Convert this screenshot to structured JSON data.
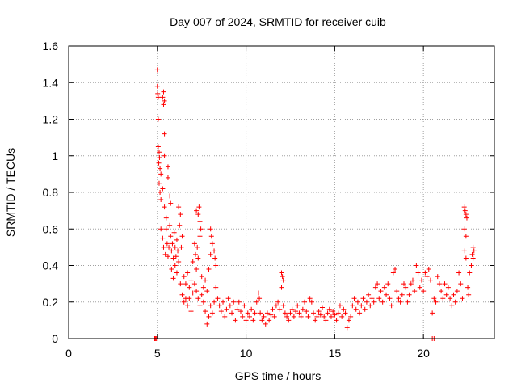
{
  "chart_data": {
    "type": "scatter",
    "title": "Day 007 of 2024, SRMTID for receiver cuib",
    "xlabel": "GPS time / hours",
    "ylabel": "SRMTID / TECUs",
    "xlim": [
      0,
      24
    ],
    "ylim": [
      0,
      1.6
    ],
    "xticks": [
      0,
      5,
      10,
      15,
      20
    ],
    "xtick_labels": [
      "0",
      "5",
      "10",
      "15",
      "20"
    ],
    "yticks": [
      0,
      0.2,
      0.4,
      0.6,
      0.8,
      1.0,
      1.2,
      1.4,
      1.6
    ],
    "ytick_labels": [
      "0",
      "0.2",
      "0.4",
      "0.6",
      "0.8",
      "1",
      "1.2",
      "1.4",
      "1.6"
    ],
    "grid": true,
    "marker": "+",
    "series": [
      {
        "name": "SRMTID",
        "color": "#ff0000",
        "points": [
          [
            4.85,
            0.0
          ],
          [
            4.9,
            0.0
          ],
          [
            4.95,
            0.0
          ],
          [
            20.5,
            0.0
          ],
          [
            20.6,
            0.0
          ],
          [
            5.0,
            1.47
          ],
          [
            5.02,
            1.34
          ],
          [
            5.05,
            1.32
          ],
          [
            5.0,
            1.38
          ],
          [
            5.05,
            1.2
          ],
          [
            5.35,
            1.35
          ],
          [
            5.4,
            1.3
          ],
          [
            5.3,
            1.32
          ],
          [
            5.35,
            1.28
          ],
          [
            5.4,
            1.12
          ],
          [
            5.05,
            1.05
          ],
          [
            5.1,
            1.02
          ],
          [
            5.12,
            0.99
          ],
          [
            5.08,
            0.96
          ],
          [
            5.15,
            0.93
          ],
          [
            5.2,
            0.9
          ],
          [
            5.1,
            0.85
          ],
          [
            5.15,
            0.8
          ],
          [
            5.2,
            0.76
          ],
          [
            5.4,
            1.0
          ],
          [
            5.6,
            0.94
          ],
          [
            5.6,
            0.88
          ],
          [
            5.3,
            0.82
          ],
          [
            5.4,
            0.72
          ],
          [
            5.5,
            0.66
          ],
          [
            5.7,
            0.78
          ],
          [
            5.75,
            0.74
          ],
          [
            5.2,
            0.6
          ],
          [
            5.3,
            0.55
          ],
          [
            5.35,
            0.5
          ],
          [
            5.45,
            0.46
          ],
          [
            5.5,
            0.6
          ],
          [
            5.55,
            0.52
          ],
          [
            5.6,
            0.45
          ],
          [
            5.65,
            0.5
          ],
          [
            5.7,
            0.62
          ],
          [
            5.75,
            0.56
          ],
          [
            5.8,
            0.48
          ],
          [
            5.85,
            0.52
          ],
          [
            5.9,
            0.44
          ],
          [
            5.95,
            0.58
          ],
          [
            6.0,
            0.5
          ],
          [
            6.05,
            0.45
          ],
          [
            6.1,
            0.54
          ],
          [
            6.15,
            0.48
          ],
          [
            5.8,
            0.38
          ],
          [
            5.9,
            0.33
          ],
          [
            6.0,
            0.4
          ],
          [
            6.1,
            0.36
          ],
          [
            6.2,
            0.42
          ],
          [
            6.3,
            0.3
          ],
          [
            6.2,
            0.72
          ],
          [
            6.3,
            0.68
          ],
          [
            6.25,
            0.62
          ],
          [
            6.4,
            0.56
          ],
          [
            6.35,
            0.5
          ],
          [
            6.5,
            0.34
          ],
          [
            6.6,
            0.3
          ],
          [
            6.7,
            0.36
          ],
          [
            6.8,
            0.28
          ],
          [
            6.9,
            0.32
          ],
          [
            7.0,
            0.25
          ],
          [
            6.4,
            0.24
          ],
          [
            6.5,
            0.2
          ],
          [
            6.6,
            0.22
          ],
          [
            6.7,
            0.18
          ],
          [
            6.8,
            0.22
          ],
          [
            6.9,
            0.15
          ],
          [
            7.0,
            0.42
          ],
          [
            7.1,
            0.52
          ],
          [
            7.15,
            0.46
          ],
          [
            7.2,
            0.38
          ],
          [
            7.25,
            0.5
          ],
          [
            7.3,
            0.44
          ],
          [
            7.2,
            0.7
          ],
          [
            7.3,
            0.68
          ],
          [
            7.35,
            0.72
          ],
          [
            7.4,
            0.64
          ],
          [
            7.45,
            0.6
          ],
          [
            7.4,
            0.56
          ],
          [
            7.1,
            0.3
          ],
          [
            7.2,
            0.26
          ],
          [
            7.3,
            0.22
          ],
          [
            7.4,
            0.18
          ],
          [
            7.5,
            0.24
          ],
          [
            7.6,
            0.2
          ],
          [
            7.5,
            0.34
          ],
          [
            7.6,
            0.28
          ],
          [
            7.7,
            0.32
          ],
          [
            7.8,
            0.26
          ],
          [
            7.9,
            0.38
          ],
          [
            8.0,
            0.46
          ],
          [
            8.0,
            0.6
          ],
          [
            8.05,
            0.56
          ],
          [
            8.1,
            0.52
          ],
          [
            8.2,
            0.48
          ],
          [
            8.25,
            0.44
          ],
          [
            8.3,
            0.4
          ],
          [
            7.7,
            0.15
          ],
          [
            7.8,
            0.08
          ],
          [
            7.9,
            0.12
          ],
          [
            8.0,
            0.18
          ],
          [
            8.1,
            0.14
          ],
          [
            8.2,
            0.2
          ],
          [
            8.3,
            0.28
          ],
          [
            8.4,
            0.22
          ],
          [
            8.5,
            0.18
          ],
          [
            8.6,
            0.15
          ],
          [
            8.7,
            0.2
          ],
          [
            8.8,
            0.12
          ],
          [
            8.9,
            0.16
          ],
          [
            9.0,
            0.22
          ],
          [
            9.1,
            0.18
          ],
          [
            9.2,
            0.14
          ],
          [
            9.3,
            0.2
          ],
          [
            9.4,
            0.1
          ],
          [
            9.5,
            0.16
          ],
          [
            9.6,
            0.2
          ],
          [
            9.7,
            0.15
          ],
          [
            9.8,
            0.12
          ],
          [
            9.9,
            0.18
          ],
          [
            10.0,
            0.1
          ],
          [
            10.1,
            0.14
          ],
          [
            10.2,
            0.12
          ],
          [
            10.3,
            0.16
          ],
          [
            10.4,
            0.1
          ],
          [
            10.5,
            0.14
          ],
          [
            10.6,
            0.2
          ],
          [
            10.7,
            0.25
          ],
          [
            10.75,
            0.22
          ],
          [
            10.8,
            0.14
          ],
          [
            10.9,
            0.1
          ],
          [
            11.0,
            0.12
          ],
          [
            11.1,
            0.08
          ],
          [
            11.2,
            0.14
          ],
          [
            11.3,
            0.1
          ],
          [
            11.4,
            0.13
          ],
          [
            11.5,
            0.16
          ],
          [
            11.6,
            0.12
          ],
          [
            11.7,
            0.18
          ],
          [
            11.8,
            0.2
          ],
          [
            11.9,
            0.16
          ],
          [
            12.0,
            0.36
          ],
          [
            12.05,
            0.34
          ],
          [
            12.1,
            0.32
          ],
          [
            12.0,
            0.28
          ],
          [
            12.1,
            0.18
          ],
          [
            12.2,
            0.14
          ],
          [
            12.3,
            0.12
          ],
          [
            12.4,
            0.1
          ],
          [
            12.5,
            0.14
          ],
          [
            12.6,
            0.16
          ],
          [
            12.7,
            0.12
          ],
          [
            12.8,
            0.15
          ],
          [
            12.9,
            0.18
          ],
          [
            13.0,
            0.14
          ],
          [
            13.1,
            0.12
          ],
          [
            13.2,
            0.16
          ],
          [
            13.3,
            0.2
          ],
          [
            13.4,
            0.15
          ],
          [
            13.5,
            0.12
          ],
          [
            13.6,
            0.22
          ],
          [
            13.7,
            0.2
          ],
          [
            13.8,
            0.14
          ],
          [
            13.9,
            0.1
          ],
          [
            14.0,
            0.12
          ],
          [
            14.1,
            0.15
          ],
          [
            14.2,
            0.13
          ],
          [
            14.3,
            0.17
          ],
          [
            14.4,
            0.12
          ],
          [
            14.5,
            0.1
          ],
          [
            14.6,
            0.14
          ],
          [
            14.7,
            0.16
          ],
          [
            14.8,
            0.12
          ],
          [
            14.9,
            0.15
          ],
          [
            15.0,
            0.13
          ],
          [
            15.1,
            0.1
          ],
          [
            15.2,
            0.14
          ],
          [
            15.3,
            0.18
          ],
          [
            15.4,
            0.12
          ],
          [
            15.5,
            0.16
          ],
          [
            15.6,
            0.14
          ],
          [
            15.7,
            0.06
          ],
          [
            15.8,
            0.1
          ],
          [
            15.9,
            0.12
          ],
          [
            16.0,
            0.18
          ],
          [
            16.1,
            0.22
          ],
          [
            16.2,
            0.16
          ],
          [
            16.3,
            0.2
          ],
          [
            16.4,
            0.14
          ],
          [
            16.5,
            0.18
          ],
          [
            16.6,
            0.22
          ],
          [
            16.7,
            0.16
          ],
          [
            16.8,
            0.2
          ],
          [
            16.9,
            0.24
          ],
          [
            17.0,
            0.18
          ],
          [
            17.1,
            0.22
          ],
          [
            17.2,
            0.2
          ],
          [
            17.3,
            0.28
          ],
          [
            17.4,
            0.3
          ],
          [
            17.5,
            0.22
          ],
          [
            17.6,
            0.26
          ],
          [
            17.7,
            0.2
          ],
          [
            17.8,
            0.28
          ],
          [
            17.9,
            0.24
          ],
          [
            18.0,
            0.3
          ],
          [
            18.1,
            0.22
          ],
          [
            18.2,
            0.18
          ],
          [
            18.3,
            0.36
          ],
          [
            18.4,
            0.38
          ],
          [
            18.5,
            0.26
          ],
          [
            18.6,
            0.22
          ],
          [
            18.7,
            0.2
          ],
          [
            18.8,
            0.24
          ],
          [
            18.9,
            0.3
          ],
          [
            19.0,
            0.28
          ],
          [
            19.1,
            0.2
          ],
          [
            19.2,
            0.24
          ],
          [
            19.3,
            0.3
          ],
          [
            19.4,
            0.32
          ],
          [
            19.5,
            0.26
          ],
          [
            19.6,
            0.4
          ],
          [
            19.7,
            0.36
          ],
          [
            19.8,
            0.28
          ],
          [
            19.9,
            0.32
          ],
          [
            20.0,
            0.26
          ],
          [
            20.1,
            0.36
          ],
          [
            20.2,
            0.34
          ],
          [
            20.3,
            0.38
          ],
          [
            20.4,
            0.32
          ],
          [
            20.5,
            0.14
          ],
          [
            20.6,
            0.22
          ],
          [
            20.7,
            0.2
          ],
          [
            20.8,
            0.34
          ],
          [
            20.9,
            0.3
          ],
          [
            21.0,
            0.26
          ],
          [
            21.1,
            0.22
          ],
          [
            21.2,
            0.3
          ],
          [
            21.3,
            0.24
          ],
          [
            21.4,
            0.28
          ],
          [
            21.5,
            0.22
          ],
          [
            21.6,
            0.18
          ],
          [
            21.7,
            0.24
          ],
          [
            21.8,
            0.2
          ],
          [
            21.9,
            0.26
          ],
          [
            22.0,
            0.36
          ],
          [
            22.1,
            0.3
          ],
          [
            22.2,
            0.22
          ],
          [
            22.3,
            0.72
          ],
          [
            22.35,
            0.7
          ],
          [
            22.4,
            0.68
          ],
          [
            22.45,
            0.66
          ],
          [
            22.3,
            0.6
          ],
          [
            22.4,
            0.56
          ],
          [
            22.3,
            0.48
          ],
          [
            22.4,
            0.44
          ],
          [
            22.5,
            0.28
          ],
          [
            22.55,
            0.24
          ],
          [
            22.6,
            0.36
          ],
          [
            22.7,
            0.4
          ],
          [
            22.75,
            0.46
          ],
          [
            22.8,
            0.5
          ],
          [
            22.85,
            0.48
          ],
          [
            22.8,
            0.44
          ]
        ]
      }
    ]
  }
}
